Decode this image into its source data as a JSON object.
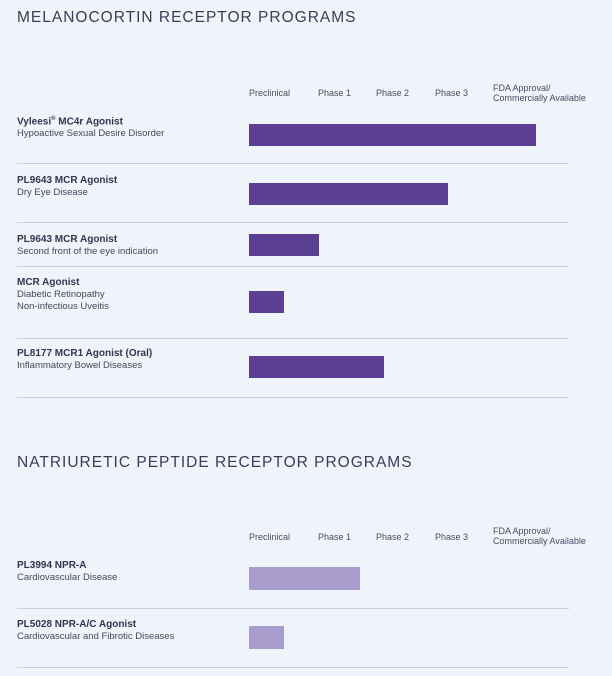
{
  "sections": [
    {
      "title": "MELANOCORTIN RECEPTOR PROGRAMS",
      "phases": [
        "Preclinical",
        "Phase 1",
        "Phase 2",
        "Phase 3",
        "FDA Approval/",
        "Commercially Available"
      ],
      "rows": [
        {
          "title": "Vyleesi",
          "title_mark": "®",
          "title_rest": " MC4r Agonist",
          "subtitle": [
            "Hypoactive Sexual Desire Disorder"
          ],
          "stage": 4.9
        },
        {
          "title": "PL9643 MCR Agonist",
          "subtitle": [
            "Dry Eye Disease"
          ],
          "stage": 3.4
        },
        {
          "title": "PL9643 MCR Agonist",
          "subtitle": [
            "Second front of the eye indication"
          ],
          "stage": 1.2
        },
        {
          "title": "MCR Agonist",
          "subtitle": [
            "Diabetic Retinopathy",
            "Non-infectious Uveitis"
          ],
          "stage": 0.6
        },
        {
          "title": "PL8177 MCR1 Agonist (Oral)",
          "subtitle": [
            "Inflammatory Bowel Diseases"
          ],
          "stage": 2.3
        }
      ]
    },
    {
      "title": "NATRIURETIC PEPTIDE RECEPTOR PROGRAMS",
      "phases": [
        "Preclinical",
        "Phase 1",
        "Phase 2",
        "Phase 3",
        "FDA Approval/",
        "Commercially Available"
      ],
      "rows": [
        {
          "title": "PL3994 NPR-A",
          "subtitle": [
            "Cardiovascular Disease"
          ],
          "stage": 1.9
        },
        {
          "title": "PL5028 NPR-A/C Agonist",
          "subtitle": [
            "Cardiovascular and Fibrotic Diseases"
          ],
          "stage": 0.6
        }
      ]
    }
  ],
  "colors": {
    "melanocortin_bar": "#5b3f93",
    "natriuretic_bar": "#a79ccb"
  },
  "chart_data": [
    {
      "type": "bar",
      "title": "MELANOCORTIN RECEPTOR PROGRAMS",
      "categories": [
        "Vyleesi® MC4r Agonist",
        "PL9643 MCR Agonist",
        "PL9643 MCR Agonist",
        "MCR Agonist",
        "PL8177 MCR1 Agonist (Oral)"
      ],
      "values": [
        4.9,
        3.4,
        1.2,
        0.6,
        2.3
      ],
      "xlabel": "",
      "ylabel": "",
      "tick_labels": [
        "Preclinical",
        "Phase 1",
        "Phase 2",
        "Phase 3",
        "FDA Approval/ Commercially Available"
      ],
      "xlim": [
        0,
        5
      ]
    },
    {
      "type": "bar",
      "title": "NATRIURETIC PEPTIDE RECEPTOR PROGRAMS",
      "categories": [
        "PL3994 NPR-A",
        "PL5028 NPR-A/C Agonist"
      ],
      "values": [
        1.9,
        0.6
      ],
      "xlabel": "",
      "ylabel": "",
      "tick_labels": [
        "Preclinical",
        "Phase 1",
        "Phase 2",
        "Phase 3",
        "FDA Approval/ Commercially Available"
      ],
      "xlim": [
        0,
        5
      ]
    }
  ]
}
